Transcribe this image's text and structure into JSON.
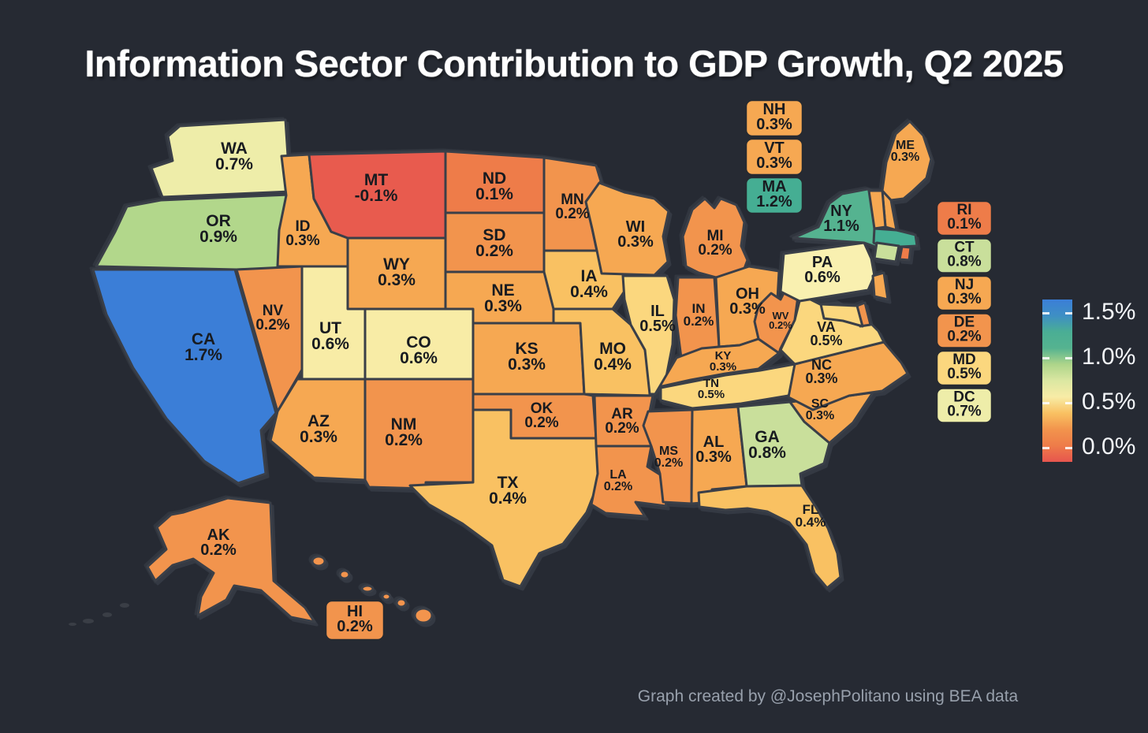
{
  "title": "Information Sector Contribution to GDP Growth, Q2 2025",
  "attribution": "Graph created by @JosephPolitano using BEA data",
  "background_color": "#262a33",
  "border_color": "#3a3f48",
  "chart_data": {
    "type": "choropleth",
    "title": "Information Sector Contribution to GDP Growth, Q2 2025",
    "unit": "percentage points of GDP growth",
    "legend_position": "right",
    "colorbar": {
      "tick_labels": [
        "1.5%",
        "1.0%",
        "0.5%",
        "0.0%"
      ],
      "gradient_top_to_bottom": [
        "#3b7ed7",
        "#3e8fc4",
        "#4aae94",
        "#55b390",
        "#aed58a",
        "#dbe7a2",
        "#f8eca6",
        "#f9c162",
        "#f2944d",
        "#ee7c49",
        "#e7554e"
      ]
    },
    "callout_groups": {
      "new_england": [
        "NH",
        "VT",
        "MA"
      ],
      "mid_atlantic": [
        "RI",
        "CT",
        "NJ",
        "DE",
        "MD",
        "DC"
      ],
      "pacific": [
        "HI"
      ]
    },
    "states": [
      {
        "abbr": "WA",
        "value": 0.7,
        "display": "0.7%",
        "color": "#eeeda9"
      },
      {
        "abbr": "OR",
        "value": 0.9,
        "display": "0.9%",
        "color": "#b2d78b"
      },
      {
        "abbr": "CA",
        "value": 1.7,
        "display": "1.7%",
        "color": "#3b7ed7"
      },
      {
        "abbr": "NV",
        "value": 0.2,
        "display": "0.2%",
        "color": "#f2944d"
      },
      {
        "abbr": "ID",
        "value": 0.3,
        "display": "0.3%",
        "color": "#f6a852"
      },
      {
        "abbr": "MT",
        "value": -0.1,
        "display": "-0.1%",
        "color": "#e85b4e"
      },
      {
        "abbr": "WY",
        "value": 0.3,
        "display": "0.3%",
        "color": "#f6a852"
      },
      {
        "abbr": "UT",
        "value": 0.6,
        "display": "0.6%",
        "color": "#f8eca6"
      },
      {
        "abbr": "CO",
        "value": 0.6,
        "display": "0.6%",
        "color": "#f8eca6"
      },
      {
        "abbr": "AZ",
        "value": 0.3,
        "display": "0.3%",
        "color": "#f6a852"
      },
      {
        "abbr": "NM",
        "value": 0.2,
        "display": "0.2%",
        "color": "#f2944d"
      },
      {
        "abbr": "ND",
        "value": 0.1,
        "display": "0.1%",
        "color": "#ee7c49"
      },
      {
        "abbr": "SD",
        "value": 0.2,
        "display": "0.2%",
        "color": "#f2944d"
      },
      {
        "abbr": "NE",
        "value": 0.3,
        "display": "0.3%",
        "color": "#f6a852"
      },
      {
        "abbr": "KS",
        "value": 0.3,
        "display": "0.3%",
        "color": "#f6a852"
      },
      {
        "abbr": "OK",
        "value": 0.2,
        "display": "0.2%",
        "color": "#f2944d"
      },
      {
        "abbr": "TX",
        "value": 0.4,
        "display": "0.4%",
        "color": "#f9c162"
      },
      {
        "abbr": "MN",
        "value": 0.2,
        "display": "0.2%",
        "color": "#f2944d"
      },
      {
        "abbr": "IA",
        "value": 0.4,
        "display": "0.4%",
        "color": "#f9c162"
      },
      {
        "abbr": "MO",
        "value": 0.4,
        "display": "0.4%",
        "color": "#f9c162"
      },
      {
        "abbr": "AR",
        "value": 0.2,
        "display": "0.2%",
        "color": "#f2944d"
      },
      {
        "abbr": "LA",
        "value": 0.2,
        "display": "0.2%",
        "color": "#f2944d"
      },
      {
        "abbr": "WI",
        "value": 0.3,
        "display": "0.3%",
        "color": "#f6a852"
      },
      {
        "abbr": "IL",
        "value": 0.5,
        "display": "0.5%",
        "color": "#fbd77e"
      },
      {
        "abbr": "MS",
        "value": 0.2,
        "display": "0.2%",
        "color": "#f2944d"
      },
      {
        "abbr": "MI",
        "value": 0.2,
        "display": "0.2%",
        "color": "#f2944d"
      },
      {
        "abbr": "IN",
        "value": 0.2,
        "display": "0.2%",
        "color": "#f2944d"
      },
      {
        "abbr": "OH",
        "value": 0.3,
        "display": "0.3%",
        "color": "#f6a852"
      },
      {
        "abbr": "KY",
        "value": 0.3,
        "display": "0.3%",
        "color": "#f6a852"
      },
      {
        "abbr": "TN",
        "value": 0.5,
        "display": "0.5%",
        "color": "#fbd77e"
      },
      {
        "abbr": "AL",
        "value": 0.3,
        "display": "0.3%",
        "color": "#f6a852"
      },
      {
        "abbr": "GA",
        "value": 0.8,
        "display": "0.8%",
        "color": "#c9df9b"
      },
      {
        "abbr": "FL",
        "value": 0.4,
        "display": "0.4%",
        "color": "#f9c162"
      },
      {
        "abbr": "SC",
        "value": 0.3,
        "display": "0.3%",
        "color": "#f6a852"
      },
      {
        "abbr": "NC",
        "value": 0.3,
        "display": "0.3%",
        "color": "#f6a852"
      },
      {
        "abbr": "VA",
        "value": 0.5,
        "display": "0.5%",
        "color": "#fbd77e"
      },
      {
        "abbr": "WV",
        "value": 0.2,
        "display": "0.2%",
        "color": "#f2944d"
      },
      {
        "abbr": "PA",
        "value": 0.6,
        "display": "0.6%",
        "color": "#f9f0b0"
      },
      {
        "abbr": "NY",
        "value": 1.1,
        "display": "1.1%",
        "color": "#55b390"
      },
      {
        "abbr": "ME",
        "value": 0.3,
        "display": "0.3%",
        "color": "#f6a852"
      },
      {
        "abbr": "NH",
        "value": 0.3,
        "display": "0.3%",
        "color": "#f6a852"
      },
      {
        "abbr": "VT",
        "value": 0.3,
        "display": "0.3%",
        "color": "#f6a852"
      },
      {
        "abbr": "MA",
        "value": 1.2,
        "display": "1.2%",
        "color": "#45ae93"
      },
      {
        "abbr": "RI",
        "value": 0.1,
        "display": "0.1%",
        "color": "#ee7c49"
      },
      {
        "abbr": "CT",
        "value": 0.8,
        "display": "0.8%",
        "color": "#c9df9b"
      },
      {
        "abbr": "NJ",
        "value": 0.3,
        "display": "0.3%",
        "color": "#f6a852"
      },
      {
        "abbr": "DE",
        "value": 0.2,
        "display": "0.2%",
        "color": "#f2944d"
      },
      {
        "abbr": "MD",
        "value": 0.5,
        "display": "0.5%",
        "color": "#fbd77e"
      },
      {
        "abbr": "DC",
        "value": 0.7,
        "display": "0.7%",
        "color": "#eeeda9"
      },
      {
        "abbr": "AK",
        "value": 0.2,
        "display": "0.2%",
        "color": "#f2944d"
      },
      {
        "abbr": "HI",
        "value": 0.2,
        "display": "0.2%",
        "color": "#f2944d"
      }
    ]
  }
}
